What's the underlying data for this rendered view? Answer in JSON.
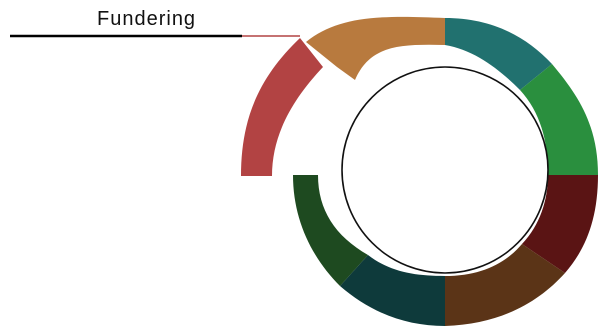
{
  "label": {
    "text": "Fundering"
  },
  "segments": [
    {
      "name": "segment-orange",
      "color": "#B87A3E"
    },
    {
      "name": "segment-teal",
      "color": "#21716F"
    },
    {
      "name": "segment-green",
      "color": "#2A8F3E"
    },
    {
      "name": "segment-maroon",
      "color": "#5A1414"
    },
    {
      "name": "segment-brown",
      "color": "#5B3417"
    },
    {
      "name": "segment-dark-teal",
      "color": "#0E3A3B"
    },
    {
      "name": "segment-dark-green",
      "color": "#1E4A20"
    },
    {
      "name": "segment-red",
      "color": "#B24343"
    }
  ],
  "colors": {
    "inner_circle": "#111111",
    "leader_line": "#000000",
    "leader_accent": "#B24343"
  }
}
